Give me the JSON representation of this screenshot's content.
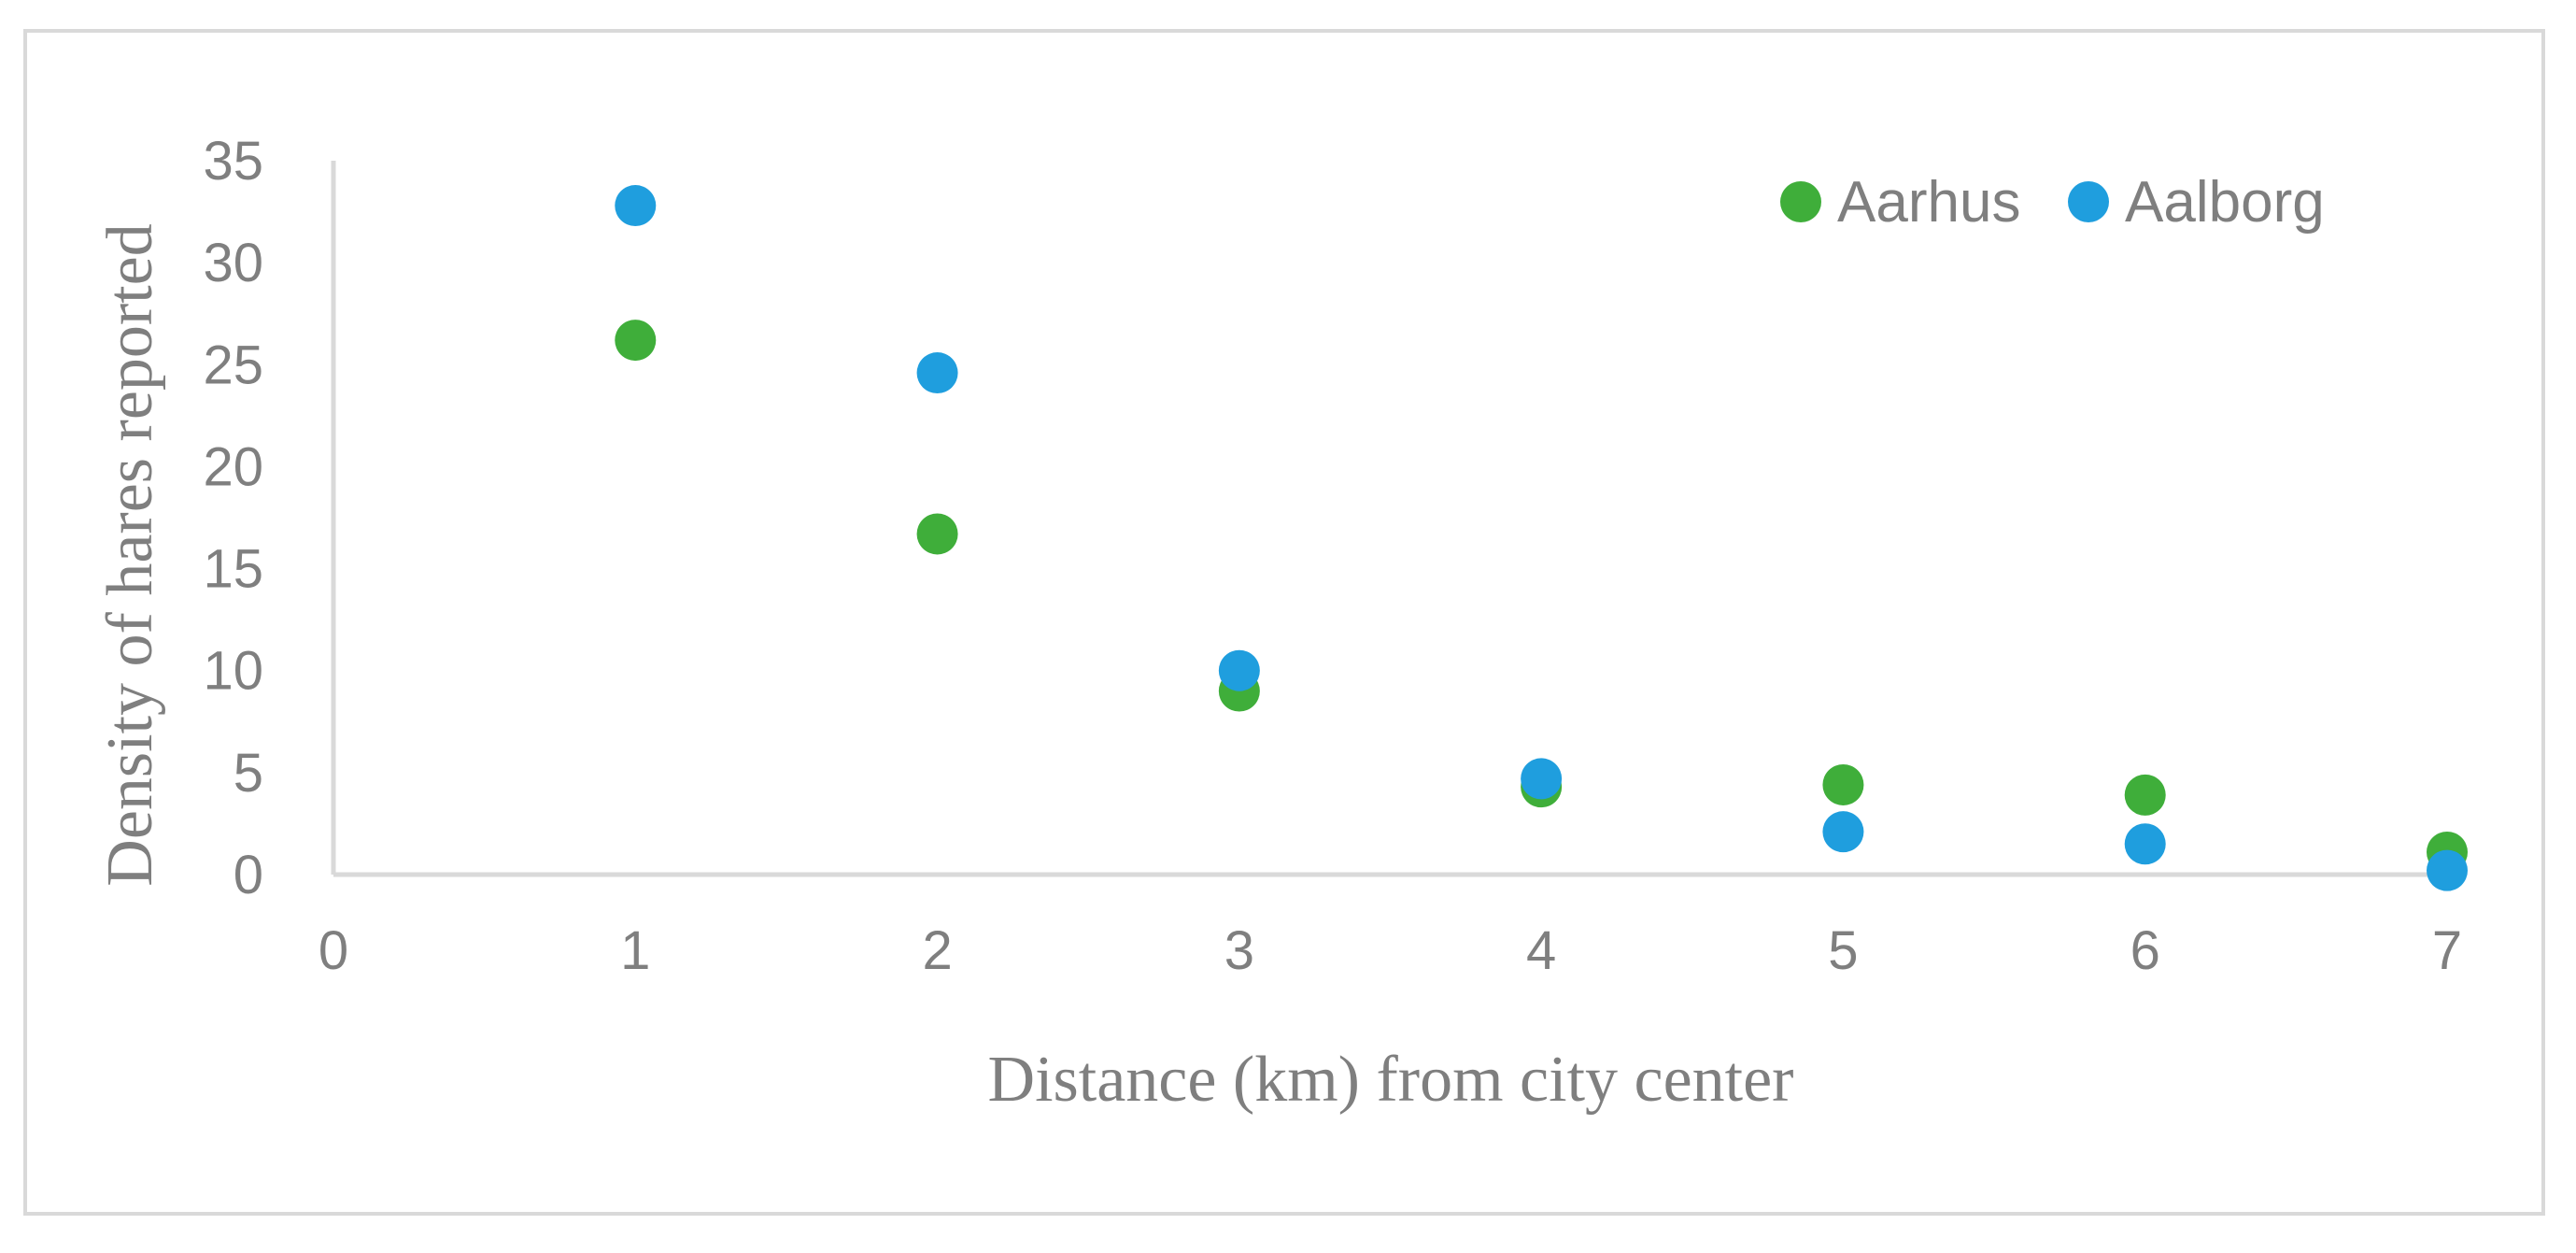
{
  "chart_data": {
    "type": "scatter",
    "title": "",
    "xlabel": "Distance (km) from city center",
    "ylabel": "Density of hares reported",
    "xlim": [
      0,
      7
    ],
    "ylim": [
      0,
      35
    ],
    "xticks": [
      "0",
      "1",
      "2",
      "3",
      "4",
      "5",
      "6",
      "7"
    ],
    "yticks": [
      "0",
      "5",
      "10",
      "15",
      "20",
      "25",
      "30",
      "35"
    ],
    "grid": false,
    "legend_position": "top-right",
    "series": [
      {
        "name": "Aarhus",
        "color": "#3fae3a",
        "x": [
          1,
          2,
          3,
          4,
          5,
          6,
          7
        ],
        "y": [
          26.2,
          16.7,
          9.0,
          4.3,
          4.4,
          3.9,
          1.1
        ]
      },
      {
        "name": "Aalborg",
        "color": "#1f9ede",
        "x": [
          1,
          2,
          3,
          4,
          5,
          6,
          7
        ],
        "y": [
          32.8,
          24.6,
          10.0,
          4.7,
          2.1,
          1.5,
          0.2
        ]
      }
    ]
  }
}
